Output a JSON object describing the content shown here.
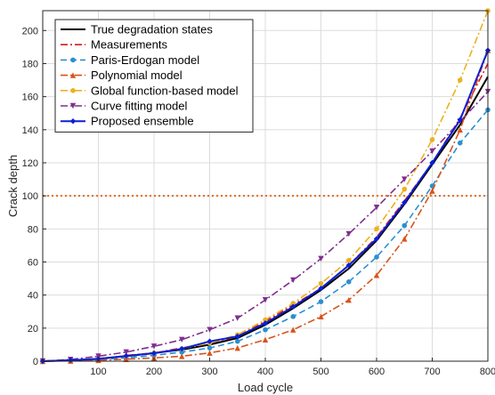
{
  "chart_data": {
    "type": "line",
    "xlabel": "Load cycle",
    "ylabel": "Crack depth",
    "xlim": [
      0,
      800
    ],
    "ylim": [
      0,
      212
    ],
    "xticks": [
      100,
      200,
      300,
      400,
      500,
      600,
      700,
      800
    ],
    "yticks": [
      0,
      20,
      40,
      60,
      80,
      100,
      120,
      140,
      160,
      180,
      200
    ],
    "grid": true,
    "legend": "top-left",
    "threshold": 100,
    "threshold_color": "#e36c1b",
    "series": [
      {
        "name": "True degradation states",
        "color": "#000000",
        "dash": "solid",
        "marker": "none",
        "x": [
          0,
          50,
          100,
          150,
          200,
          250,
          300,
          350,
          400,
          450,
          500,
          550,
          600,
          650,
          700,
          750,
          800
        ],
        "y": [
          0,
          0.5,
          1.5,
          3,
          5,
          7,
          10,
          14,
          22,
          32,
          43,
          56,
          73,
          95,
          119,
          143,
          172
        ]
      },
      {
        "name": "Measurements",
        "color": "#d7191c",
        "dash": "dashdot",
        "marker": "none",
        "x": [
          0,
          50,
          100,
          150,
          200,
          250,
          300,
          350,
          400,
          450,
          500,
          550,
          600,
          650,
          700,
          750,
          800
        ],
        "y": [
          0,
          0.8,
          1,
          3.5,
          5,
          8,
          11,
          15,
          24,
          34,
          44,
          58,
          75,
          97,
          120,
          147,
          180
        ]
      },
      {
        "name": "Paris-Erdogan model",
        "color": "#2a8fd0",
        "dash": "dashed",
        "marker": "circle",
        "x": [
          0,
          50,
          100,
          150,
          200,
          250,
          300,
          350,
          400,
          450,
          500,
          550,
          600,
          650,
          700,
          750,
          800
        ],
        "y": [
          0,
          0.3,
          1,
          2,
          3.5,
          5.5,
          8,
          12,
          19,
          27,
          36,
          48,
          63,
          82,
          106,
          132,
          152
        ]
      },
      {
        "name": "Polynomial model",
        "color": "#d95319",
        "dash": "dashdot",
        "marker": "triangle-up",
        "x": [
          0,
          50,
          100,
          150,
          200,
          250,
          300,
          350,
          400,
          450,
          500,
          550,
          600,
          650,
          700,
          750,
          800
        ],
        "y": [
          0,
          0.2,
          0.6,
          1.2,
          2,
          3,
          5,
          8,
          13,
          19,
          27,
          37,
          52,
          74,
          103,
          140,
          188
        ]
      },
      {
        "name": "Global function-based model",
        "color": "#edb120",
        "dash": "dashdot",
        "marker": "circle",
        "x": [
          0,
          50,
          100,
          150,
          200,
          250,
          300,
          350,
          400,
          450,
          500,
          550,
          600,
          650,
          700,
          750,
          800
        ],
        "y": [
          0,
          0.6,
          1.6,
          3,
          5,
          7.5,
          11,
          16,
          25,
          35,
          47,
          61,
          80,
          104,
          134,
          170,
          212
        ]
      },
      {
        "name": "Curve fitting model",
        "color": "#7e2f8e",
        "dash": "dashdot",
        "marker": "triangle-down",
        "x": [
          0,
          50,
          100,
          150,
          200,
          250,
          300,
          350,
          400,
          450,
          500,
          550,
          600,
          650,
          700,
          750,
          800
        ],
        "y": [
          0,
          1,
          3,
          5.5,
          9,
          13,
          19,
          26,
          37,
          49,
          62,
          77,
          93,
          110,
          127,
          145,
          163
        ]
      },
      {
        "name": "Proposed ensemble",
        "color": "#0b1fd6",
        "dash": "solid",
        "marker": "diamond",
        "x": [
          0,
          50,
          100,
          150,
          200,
          250,
          300,
          350,
          400,
          450,
          500,
          550,
          600,
          650,
          700,
          750,
          800
        ],
        "y": [
          0,
          0.6,
          1.4,
          3.2,
          4.8,
          7.5,
          12,
          15,
          23,
          33,
          44,
          58,
          74,
          96,
          120,
          146,
          188
        ]
      }
    ]
  }
}
